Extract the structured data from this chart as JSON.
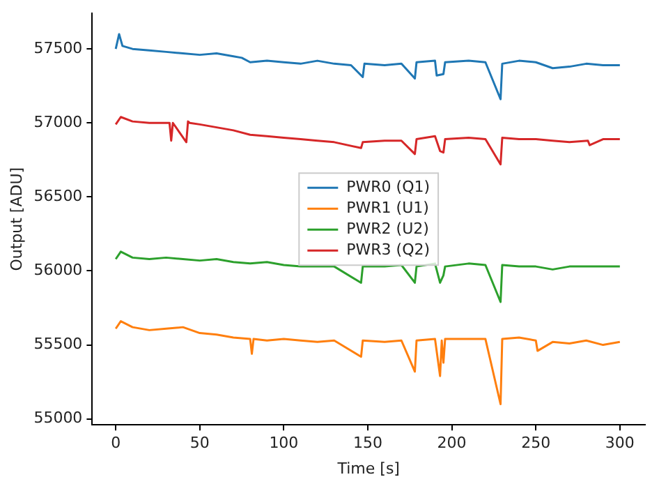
{
  "chart_data": {
    "type": "line",
    "xlabel": "Time [s]",
    "ylabel": "Output [ADU]",
    "xlim": [
      -14,
      315
    ],
    "ylim": [
      54960,
      57740
    ],
    "xticks": [
      0,
      50,
      100,
      150,
      200,
      250,
      300
    ],
    "yticks": [
      55000,
      55500,
      56000,
      56500,
      57000,
      57500
    ],
    "grid": false,
    "legend": "center",
    "marker": "none",
    "line_style": "solid",
    "series": [
      {
        "name": "PWR0 (Q1)",
        "color": "#1f77b4",
        "x": [
          0,
          2,
          4,
          10,
          20,
          30,
          40,
          50,
          60,
          70,
          75,
          80,
          90,
          100,
          110,
          120,
          130,
          140,
          147,
          148,
          160,
          170,
          178,
          179,
          190,
          191,
          195,
          196,
          210,
          220,
          229,
          230,
          240,
          250,
          260,
          270,
          280,
          290,
          300
        ],
        "values": [
          57500,
          57600,
          57520,
          57500,
          57490,
          57480,
          57470,
          57460,
          57470,
          57450,
          57440,
          57410,
          57420,
          57410,
          57400,
          57420,
          57400,
          57390,
          57310,
          57400,
          57390,
          57400,
          57300,
          57410,
          57420,
          57320,
          57330,
          57410,
          57420,
          57410,
          57160,
          57400,
          57420,
          57410,
          57370,
          57380,
          57400,
          57390,
          57390
        ]
      },
      {
        "name": "PWR1 (U1)",
        "color": "#ff7f0e",
        "x": [
          0,
          3,
          10,
          20,
          30,
          40,
          50,
          60,
          70,
          80,
          81,
          82,
          90,
          100,
          110,
          120,
          130,
          146,
          147,
          160,
          170,
          178,
          179,
          190,
          193,
          194,
          195,
          196,
          210,
          220,
          229,
          230,
          240,
          250,
          251,
          260,
          270,
          280,
          290,
          300
        ],
        "values": [
          55610,
          55660,
          55620,
          55600,
          55610,
          55620,
          55580,
          55570,
          55550,
          55540,
          55440,
          55540,
          55530,
          55540,
          55530,
          55520,
          55530,
          55420,
          55530,
          55520,
          55530,
          55320,
          55530,
          55540,
          55290,
          55530,
          55380,
          55540,
          55540,
          55540,
          55100,
          55540,
          55550,
          55530,
          55460,
          55520,
          55510,
          55530,
          55500,
          55520
        ]
      },
      {
        "name": "PWR2 (U2)",
        "color": "#2ca02c",
        "x": [
          0,
          3,
          10,
          20,
          30,
          40,
          50,
          60,
          70,
          80,
          90,
          100,
          110,
          120,
          130,
          146,
          147,
          160,
          170,
          178,
          179,
          190,
          193,
          195,
          196,
          210,
          220,
          229,
          230,
          240,
          250,
          260,
          270,
          280,
          290,
          300
        ],
        "values": [
          56080,
          56130,
          56090,
          56080,
          56090,
          56080,
          56070,
          56080,
          56060,
          56050,
          56060,
          56040,
          56030,
          56030,
          56030,
          55920,
          56030,
          56030,
          56040,
          55920,
          56030,
          56050,
          55920,
          55970,
          56030,
          56050,
          56040,
          55790,
          56040,
          56030,
          56030,
          56010,
          56030,
          56030,
          56030,
          56030
        ]
      },
      {
        "name": "PWR3 (Q2)",
        "color": "#d62728",
        "x": [
          0,
          3,
          10,
          20,
          32,
          33,
          34,
          42,
          43,
          44,
          50,
          60,
          70,
          80,
          90,
          100,
          110,
          120,
          130,
          146,
          147,
          160,
          170,
          178,
          179,
          190,
          193,
          195,
          196,
          210,
          220,
          229,
          230,
          240,
          250,
          260,
          270,
          281,
          282,
          290,
          300
        ],
        "values": [
          56990,
          57040,
          57010,
          57000,
          57000,
          56880,
          57000,
          56870,
          57010,
          57000,
          56990,
          56970,
          56950,
          56920,
          56910,
          56900,
          56890,
          56880,
          56870,
          56830,
          56870,
          56880,
          56880,
          56790,
          56890,
          56910,
          56810,
          56800,
          56890,
          56900,
          56890,
          56720,
          56900,
          56890,
          56890,
          56880,
          56870,
          56880,
          56850,
          56890,
          56890
        ]
      }
    ]
  }
}
